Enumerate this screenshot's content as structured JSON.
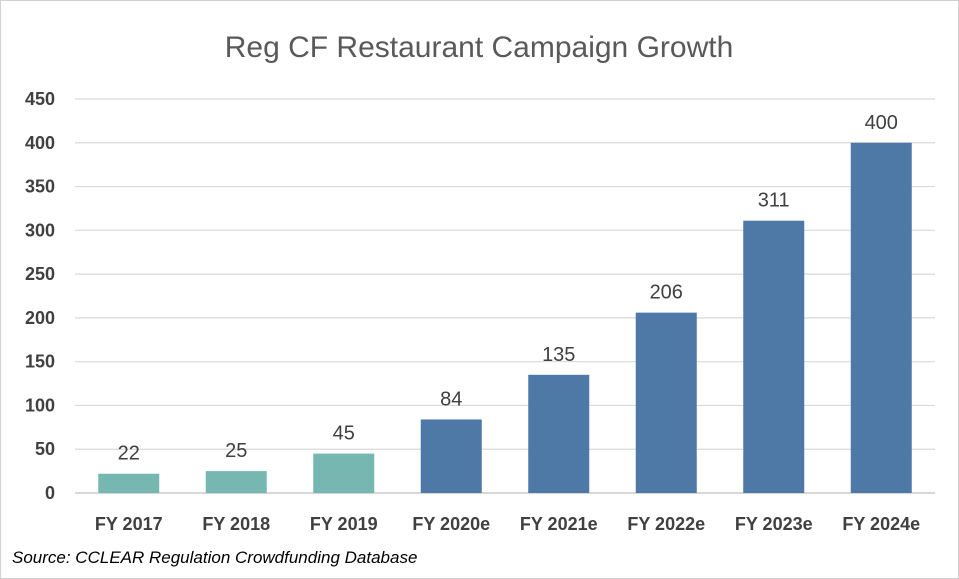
{
  "chart_data": {
    "type": "bar",
    "title": "Reg CF Restaurant Campaign Growth",
    "categories": [
      "FY 2017",
      "FY 2018",
      "FY 2019",
      "FY 2020e",
      "FY 2021e",
      "FY 2022e",
      "FY 2023e",
      "FY 2024e"
    ],
    "values": [
      22,
      25,
      45,
      84,
      135,
      206,
      311,
      400
    ],
    "data_labels": [
      "22",
      "25",
      "45",
      "84",
      "135",
      "206",
      "311",
      "400"
    ],
    "bar_colors": [
      "#76b7b2",
      "#76b7b2",
      "#76b7b2",
      "#4e79a7",
      "#4e79a7",
      "#4e79a7",
      "#4e79a7",
      "#4e79a7"
    ],
    "yticks": [
      "0",
      "50",
      "100",
      "150",
      "200",
      "250",
      "300",
      "350",
      "400",
      "450"
    ],
    "ylim": [
      0,
      450
    ],
    "xlabel": "",
    "ylabel": "",
    "grid": true,
    "legend": "none"
  },
  "source": "Source: CCLEAR Regulation Crowdfunding Database"
}
